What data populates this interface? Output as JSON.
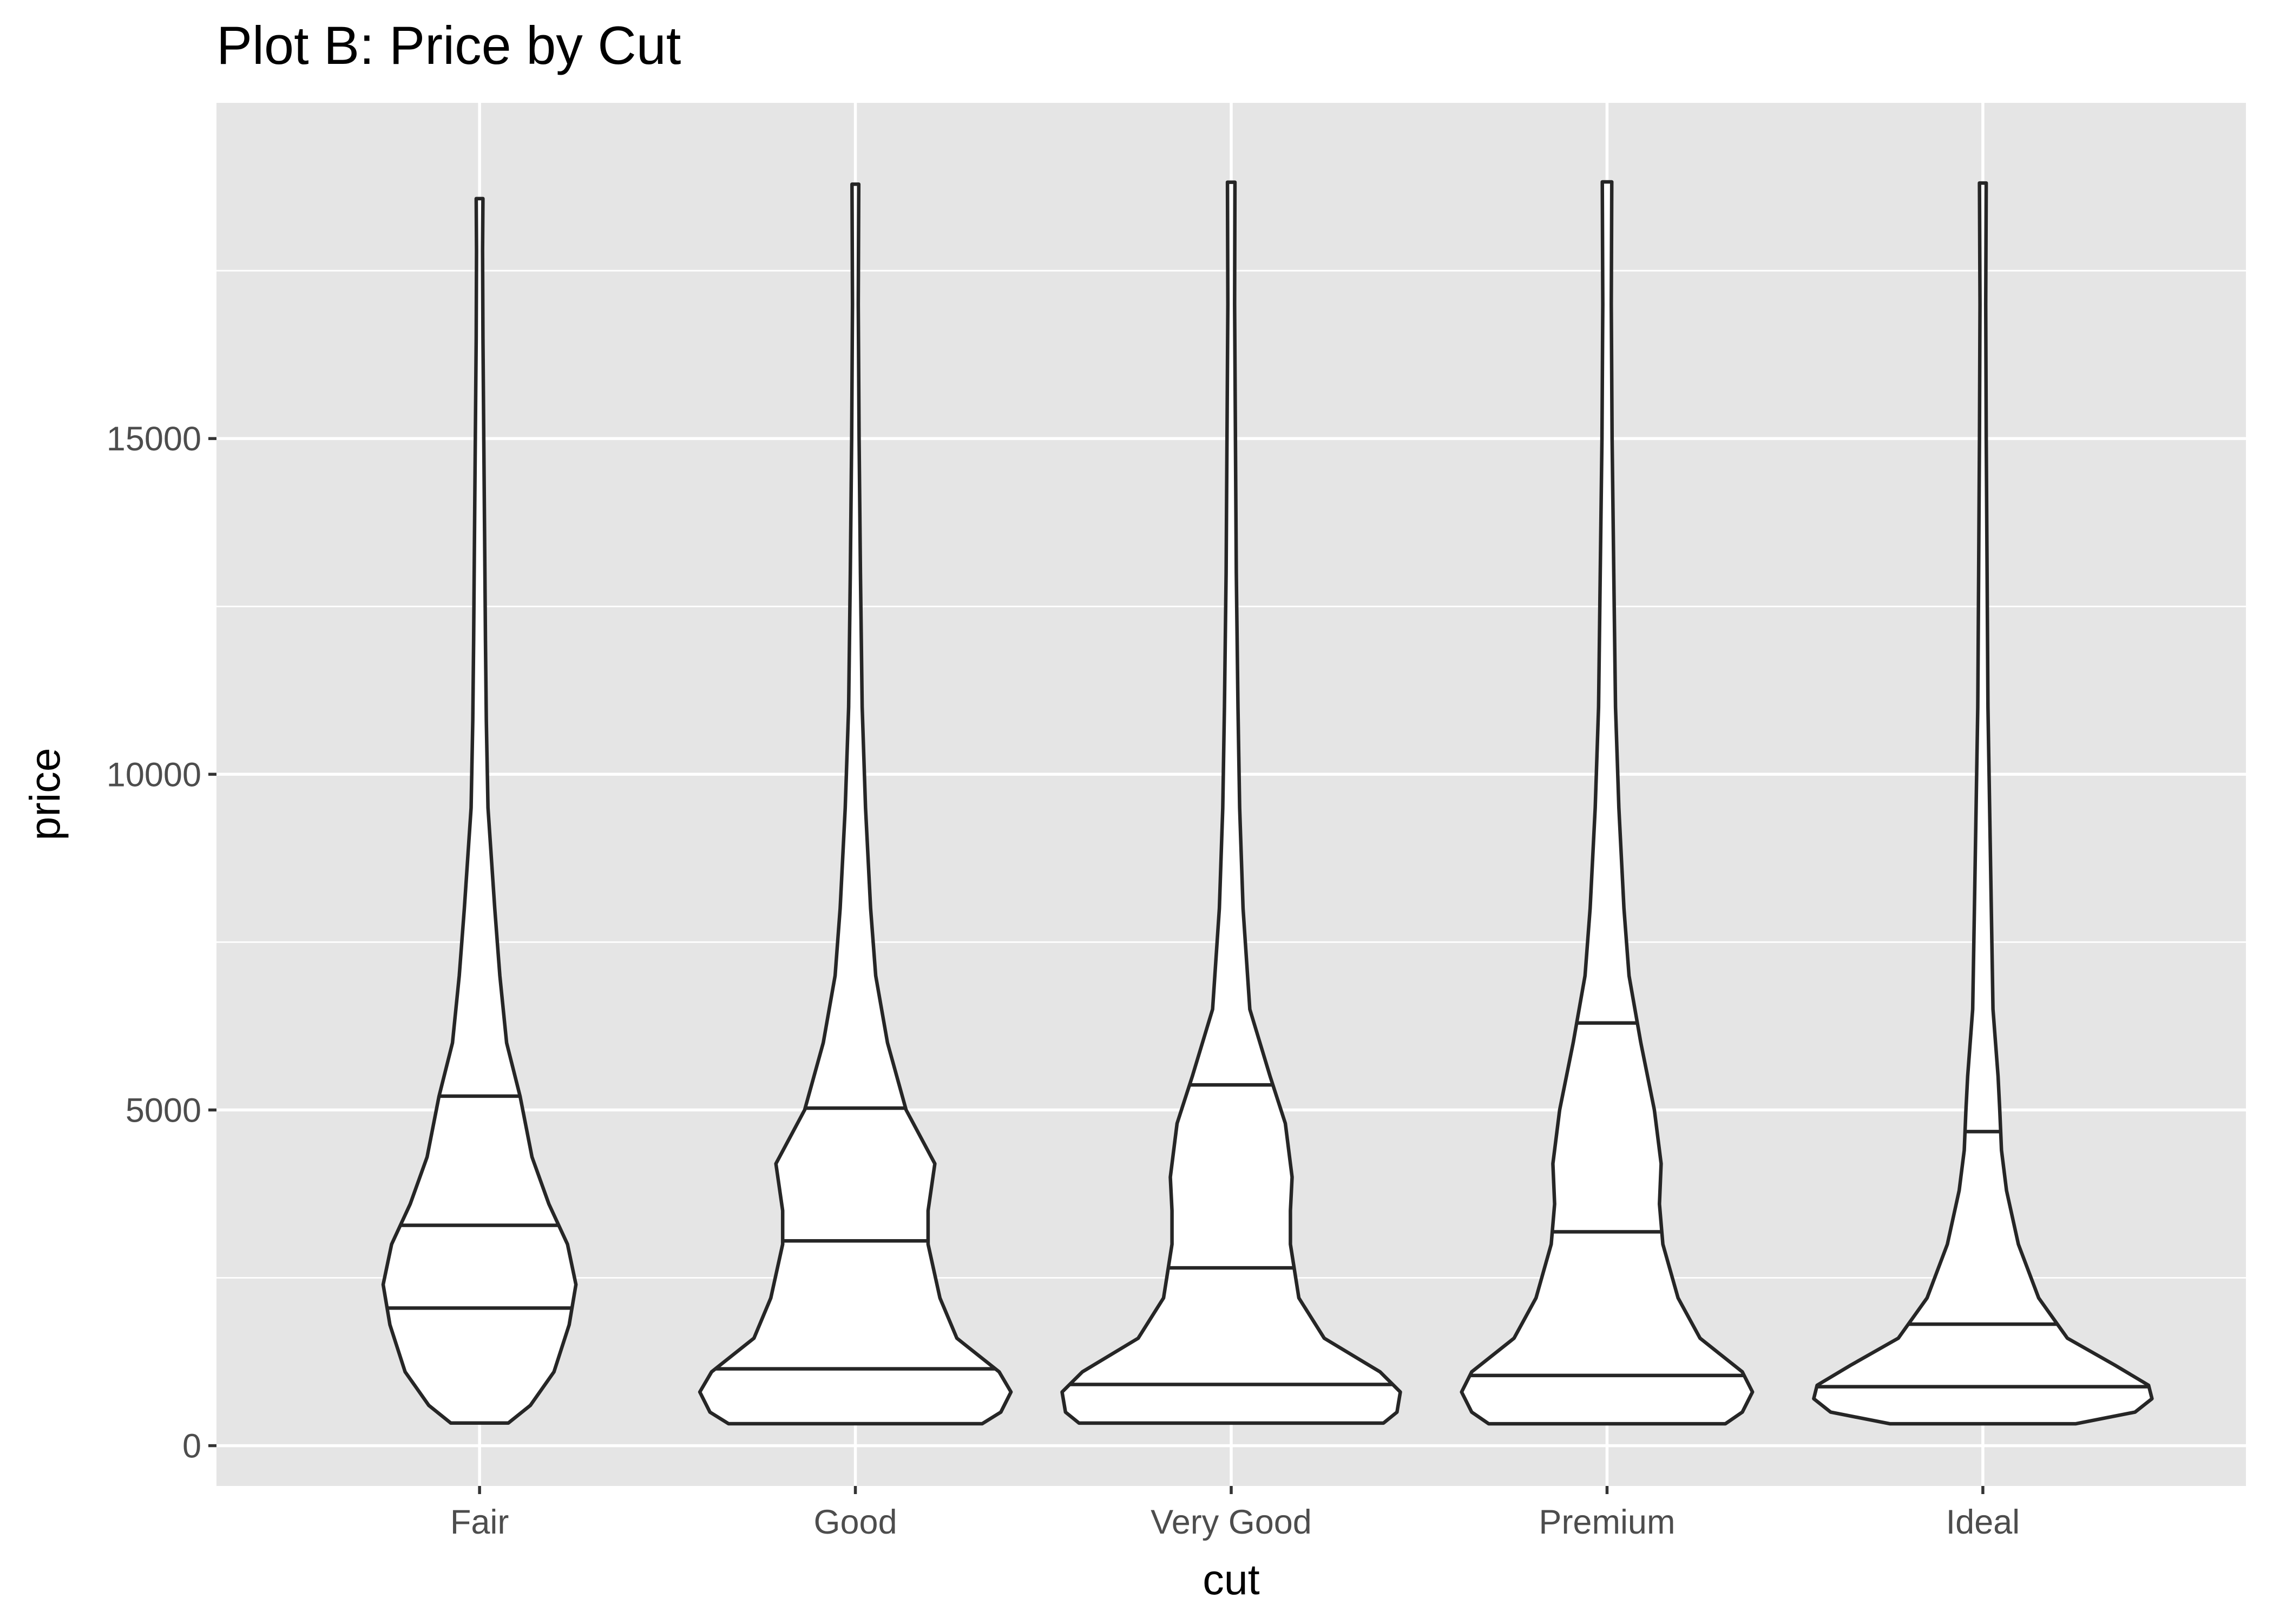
{
  "chart_data": {
    "type": "violin",
    "title": "Plot B: Price by Cut",
    "xlabel": "cut",
    "ylabel": "price",
    "categories": [
      "Fair",
      "Good",
      "Very Good",
      "Premium",
      "Ideal"
    ],
    "ylim": [
      -600,
      20000
    ],
    "yticks": [
      0,
      5000,
      10000,
      15000
    ],
    "yticks_minor": [
      2500,
      7500,
      12500,
      17500
    ],
    "draw_quantiles": [
      0.25,
      0.5,
      0.75
    ],
    "violins": [
      {
        "name": "Fair",
        "min": 337,
        "max": 18574,
        "quartiles": [
          2050,
          3282,
          5206
        ],
        "density": [
          [
            337,
            0.17
          ],
          [
            600,
            0.3
          ],
          [
            1100,
            0.44
          ],
          [
            1800,
            0.53
          ],
          [
            2400,
            0.57
          ],
          [
            3000,
            0.52
          ],
          [
            3600,
            0.41
          ],
          [
            4300,
            0.31
          ],
          [
            5200,
            0.24
          ],
          [
            6000,
            0.16
          ],
          [
            7000,
            0.12
          ],
          [
            8000,
            0.09
          ],
          [
            9500,
            0.05
          ],
          [
            10800,
            0.04
          ],
          [
            12000,
            0.035
          ],
          [
            13500,
            0.03
          ],
          [
            15000,
            0.025
          ],
          [
            16500,
            0.02
          ],
          [
            17800,
            0.018
          ],
          [
            18574,
            0.02
          ]
        ]
      },
      {
        "name": "Good",
        "min": 327,
        "max": 18788,
        "quartiles": [
          1145,
          3050,
          5028
        ],
        "density": [
          [
            327,
            0.75
          ],
          [
            500,
            0.86
          ],
          [
            800,
            0.92
          ],
          [
            1100,
            0.85
          ],
          [
            1600,
            0.6
          ],
          [
            2200,
            0.5
          ],
          [
            3000,
            0.43
          ],
          [
            3500,
            0.43
          ],
          [
            4200,
            0.47
          ],
          [
            5000,
            0.3
          ],
          [
            6000,
            0.19
          ],
          [
            7000,
            0.12
          ],
          [
            8000,
            0.09
          ],
          [
            9500,
            0.06
          ],
          [
            11000,
            0.04
          ],
          [
            13000,
            0.03
          ],
          [
            15000,
            0.022
          ],
          [
            17000,
            0.017
          ],
          [
            18788,
            0.02
          ]
        ]
      },
      {
        "name": "Very Good",
        "min": 336,
        "max": 18818,
        "quartiles": [
          912,
          2648,
          5373
        ],
        "density": [
          [
            336,
            0.9
          ],
          [
            500,
            0.98
          ],
          [
            800,
            1.0
          ],
          [
            1100,
            0.88
          ],
          [
            1600,
            0.55
          ],
          [
            2200,
            0.4
          ],
          [
            3000,
            0.35
          ],
          [
            3500,
            0.35
          ],
          [
            4000,
            0.36
          ],
          [
            4800,
            0.32
          ],
          [
            5500,
            0.23
          ],
          [
            6500,
            0.11
          ],
          [
            8000,
            0.07
          ],
          [
            9500,
            0.05
          ],
          [
            11000,
            0.04
          ],
          [
            13000,
            0.03
          ],
          [
            15000,
            0.025
          ],
          [
            17000,
            0.02
          ],
          [
            18818,
            0.022
          ]
        ]
      },
      {
        "name": "Premium",
        "min": 326,
        "max": 18823,
        "quartiles": [
          1046,
          3185,
          6296
        ],
        "density": [
          [
            326,
            0.7
          ],
          [
            500,
            0.8
          ],
          [
            800,
            0.86
          ],
          [
            1100,
            0.8
          ],
          [
            1600,
            0.55
          ],
          [
            2200,
            0.42
          ],
          [
            3000,
            0.33
          ],
          [
            3600,
            0.31
          ],
          [
            4200,
            0.32
          ],
          [
            5000,
            0.28
          ],
          [
            6000,
            0.2
          ],
          [
            7000,
            0.13
          ],
          [
            8000,
            0.1
          ],
          [
            9500,
            0.07
          ],
          [
            11000,
            0.05
          ],
          [
            13000,
            0.04
          ],
          [
            15000,
            0.03
          ],
          [
            17000,
            0.025
          ],
          [
            18823,
            0.028
          ]
        ]
      },
      {
        "name": "Ideal",
        "min": 326,
        "max": 18806,
        "quartiles": [
          878,
          1810,
          4678
        ],
        "density": [
          [
            326,
            0.55
          ],
          [
            500,
            0.9
          ],
          [
            700,
            1.0
          ],
          [
            900,
            0.98
          ],
          [
            1200,
            0.78
          ],
          [
            1600,
            0.5
          ],
          [
            2200,
            0.33
          ],
          [
            3000,
            0.21
          ],
          [
            3800,
            0.14
          ],
          [
            4400,
            0.11
          ],
          [
            5000,
            0.1
          ],
          [
            5500,
            0.09
          ],
          [
            6500,
            0.06
          ],
          [
            8000,
            0.05
          ],
          [
            9500,
            0.04
          ],
          [
            11000,
            0.03
          ],
          [
            13000,
            0.025
          ],
          [
            15000,
            0.02
          ],
          [
            17000,
            0.017
          ],
          [
            18806,
            0.02
          ]
        ]
      }
    ],
    "colors": {
      "panel_background": "#e5e5e5",
      "grid": "#ffffff",
      "violin_fill": "#ffffff",
      "violin_outline": "#262626",
      "tick_label": "#4d4d4d"
    }
  }
}
